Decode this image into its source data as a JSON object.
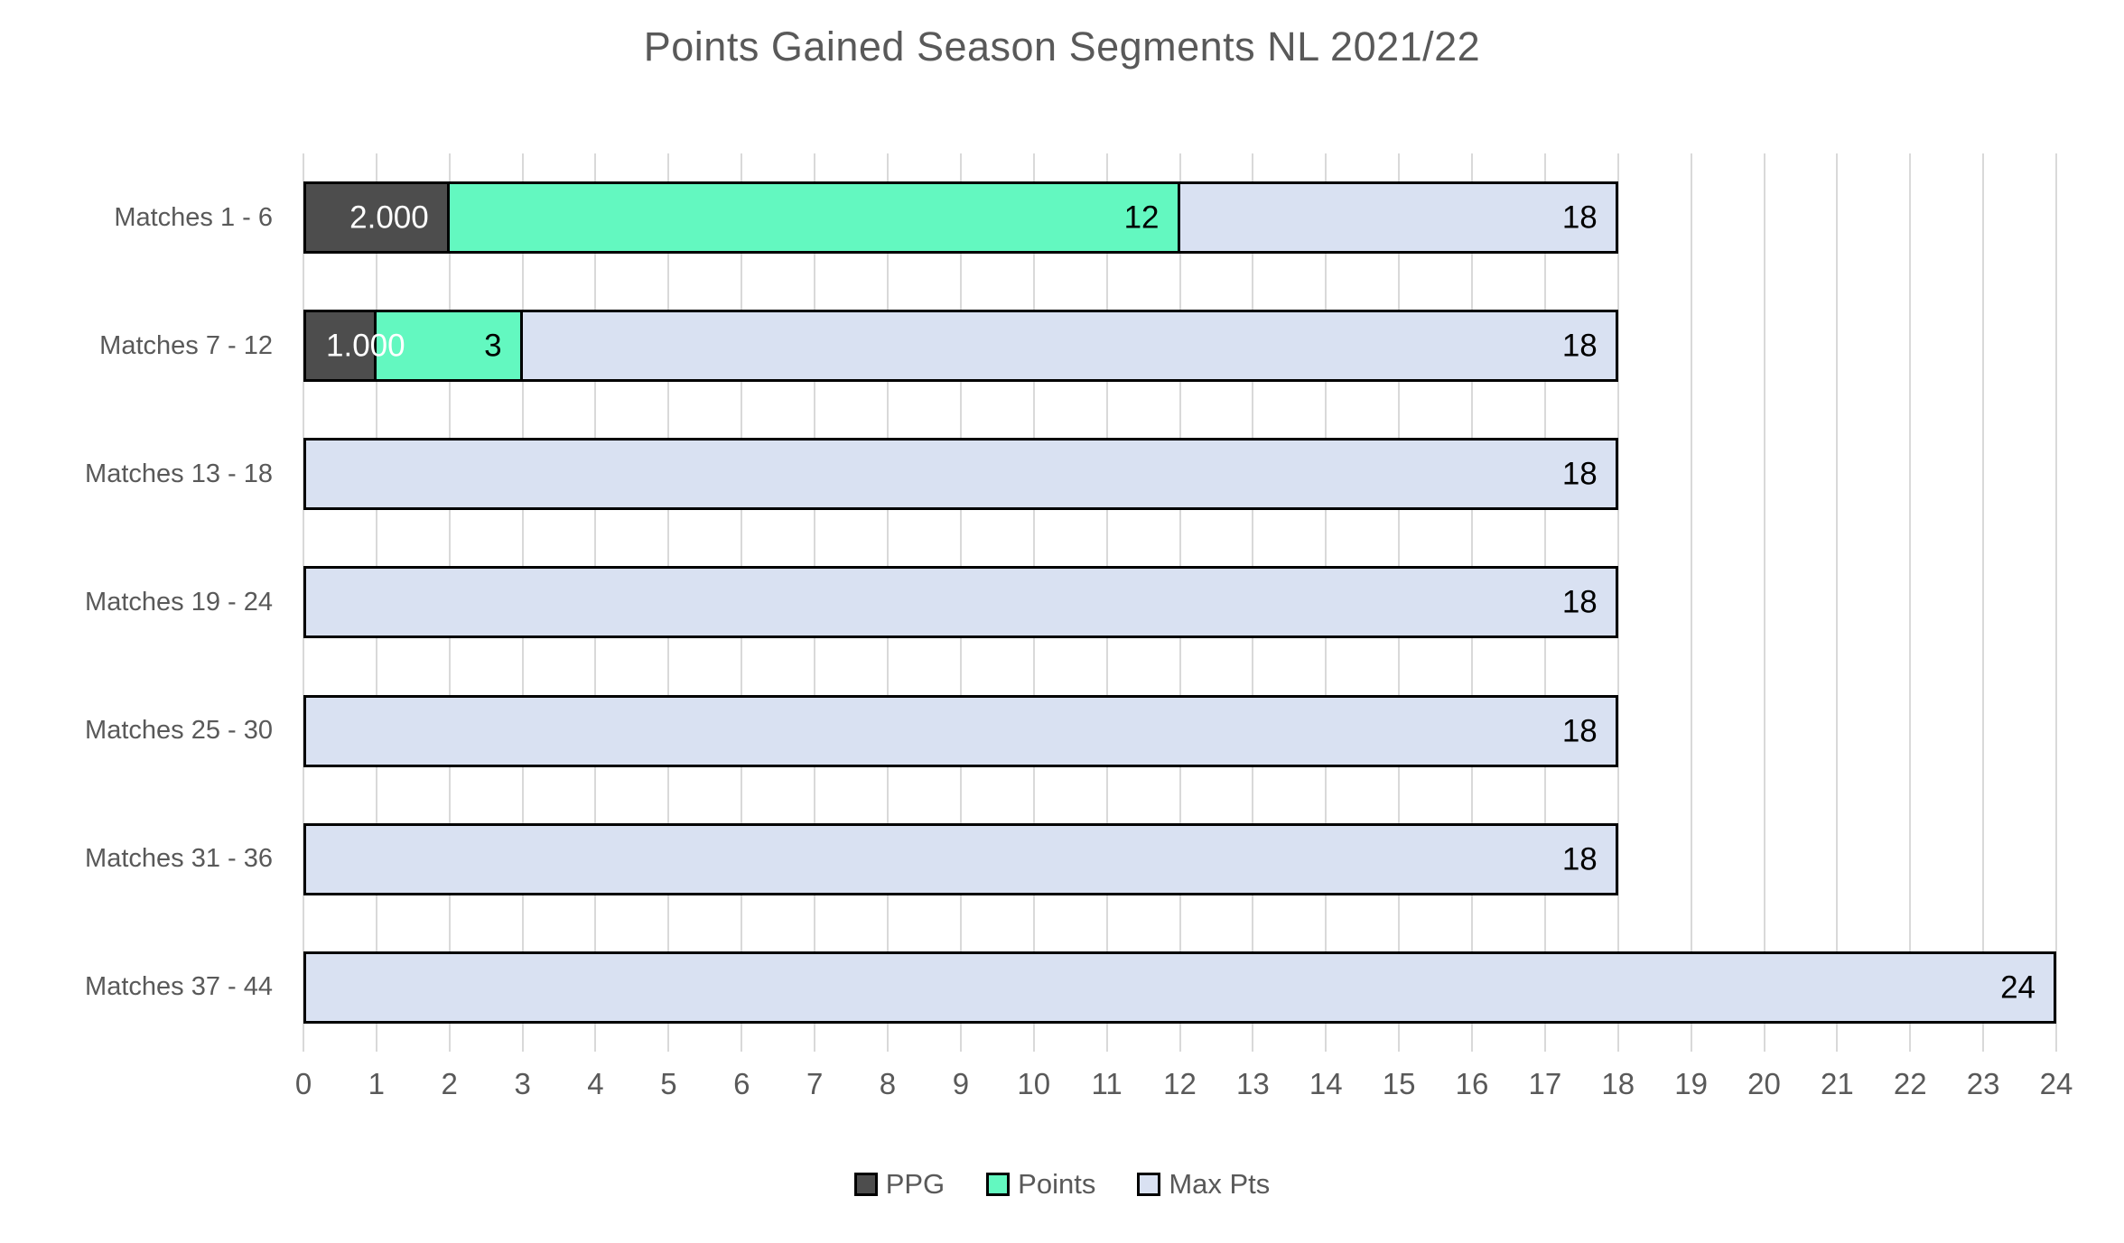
{
  "chart_data": {
    "type": "bar",
    "orientation": "horizontal",
    "title": "Points Gained Season Segments NL 2021/22",
    "categories": [
      "Matches 1 - 6",
      "Matches 7 - 12",
      "Matches 13 - 18",
      "Matches 19 - 24",
      "Matches 25 - 30",
      "Matches 31 - 36",
      "Matches 37 - 44"
    ],
    "series": [
      {
        "name": "PPG",
        "color": "#4d4d4d",
        "label_color": "#ffffff",
        "values": [
          2,
          1,
          null,
          null,
          null,
          null,
          null
        ],
        "labels": [
          "2.000",
          "1.000",
          null,
          null,
          null,
          null,
          null
        ]
      },
      {
        "name": "Points",
        "color": "#63f8c0",
        "label_color": "#000000",
        "values": [
          12,
          3,
          null,
          null,
          null,
          null,
          null
        ],
        "labels": [
          "12",
          "3",
          null,
          null,
          null,
          null,
          null
        ]
      },
      {
        "name": "Max Pts",
        "color": "#d9e1f2",
        "label_color": "#000000",
        "values": [
          18,
          18,
          18,
          18,
          18,
          18,
          24
        ],
        "labels": [
          "18",
          "18",
          "18",
          "18",
          "18",
          "18",
          "24"
        ]
      }
    ],
    "xlim": [
      0,
      24
    ],
    "x_ticks": [
      0,
      1,
      2,
      3,
      4,
      5,
      6,
      7,
      8,
      9,
      10,
      11,
      12,
      13,
      14,
      15,
      16,
      17,
      18,
      19,
      20,
      21,
      22,
      23,
      24
    ],
    "grid": true,
    "bar_overlap": "full",
    "legend_position": "bottom"
  },
  "colors": {
    "background": "#ffffff",
    "gridline": "#d9d9d9",
    "bar_border": "#000000",
    "text": "#595959"
  }
}
